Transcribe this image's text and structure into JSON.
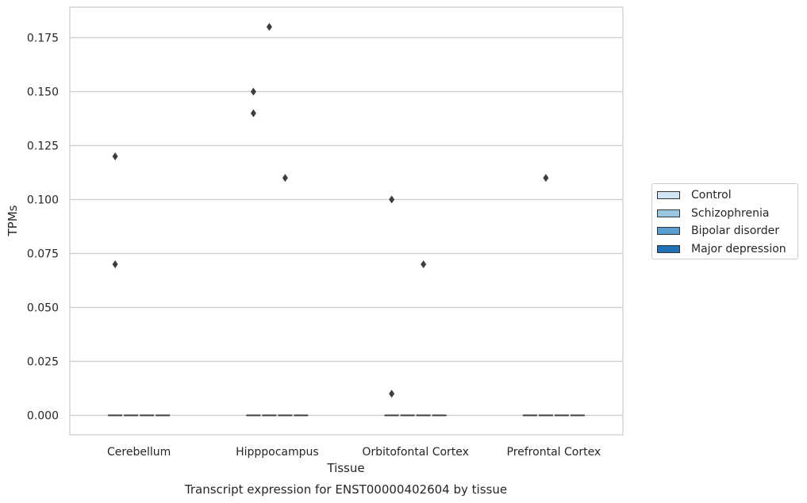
{
  "chart_data": {
    "type": "box",
    "title": "Transcript expression for ENST00000402604 by tissue",
    "xlabel": "Tissue",
    "ylabel": "TPMs",
    "categories": [
      "Cerebellum",
      "Hipppocampus",
      "Orbitofontal Cortex",
      "Prefrontal Cortex"
    ],
    "ylim": [
      -0.009,
      0.189
    ],
    "yticks": [
      "0.000",
      "0.025",
      "0.050",
      "0.075",
      "0.100",
      "0.125",
      "0.150",
      "0.175"
    ],
    "grid": true,
    "legend_position": "right",
    "series": [
      {
        "name": "Control",
        "color": "#d2e3f3",
        "median": [
          0,
          0,
          0,
          0
        ],
        "outliers": [
          [
            0.12,
            0.07
          ],
          [
            0.15,
            0.14
          ],
          [
            0.1,
            0.01
          ],
          []
        ]
      },
      {
        "name": "Schizophrenia",
        "color": "#9ac8e0",
        "median": [
          0,
          0,
          0,
          0
        ],
        "outliers": [
          [],
          [
            0.18
          ],
          [],
          [
            0.11
          ]
        ]
      },
      {
        "name": "Bipolar disorder",
        "color": "#5a9fcf",
        "median": [
          0,
          0,
          0,
          0
        ],
        "outliers": [
          [],
          [
            0.11
          ],
          [
            0.07
          ],
          []
        ]
      },
      {
        "name": "Major depression",
        "color": "#2070b4",
        "median": [
          0,
          0,
          0,
          0
        ],
        "outliers": [
          [],
          [],
          [],
          []
        ]
      }
    ]
  }
}
